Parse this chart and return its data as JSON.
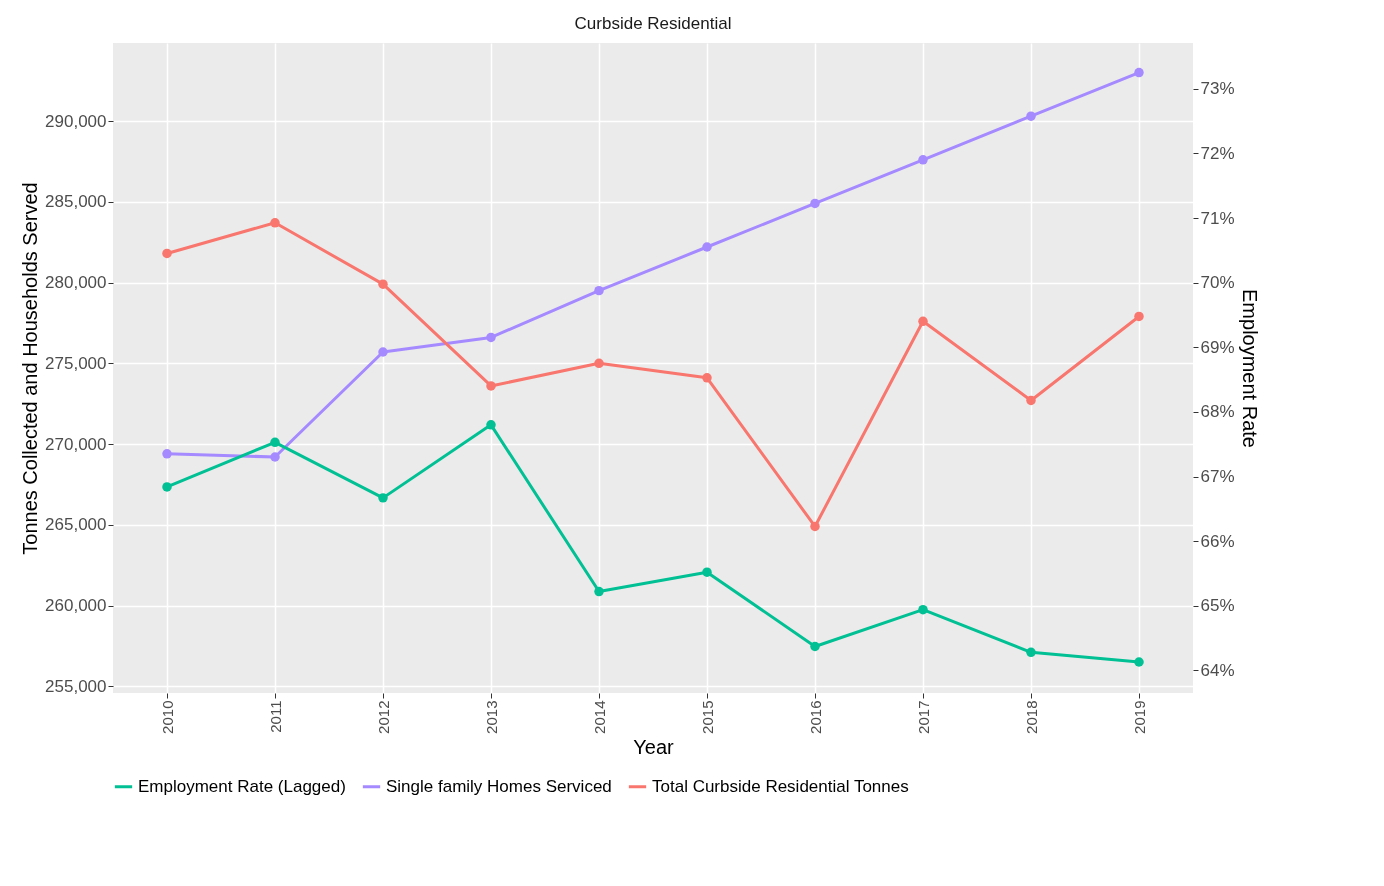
{
  "chart_data": {
    "type": "line",
    "title": "Curbside Residential",
    "xlabel": "Year",
    "ylabel": "Tonnes Collected and Households Served",
    "y2label": "Employment Rate",
    "categories": [
      "2010",
      "2011",
      "2012",
      "2013",
      "2014",
      "2015",
      "2016",
      "2017",
      "2018",
      "2019"
    ],
    "series": [
      {
        "name": "Employment Rate (Lagged)",
        "color": "#00c094",
        "axis": "y2",
        "values": [
          66.84,
          67.53,
          66.67,
          67.8,
          65.22,
          65.52,
          64.37,
          64.94,
          64.28,
          64.13
        ]
      },
      {
        "name": "Single family Homes Serviced",
        "color": "#a58aff",
        "values": [
          269400,
          269200,
          275700,
          276600,
          279500,
          282200,
          284900,
          287600,
          290300,
          293000
        ]
      },
      {
        "name": "Total Curbside Residential Tonnes",
        "color": "#f8766d",
        "values": [
          281800,
          283700,
          279900,
          273600,
          275000,
          274100,
          264900,
          277600,
          272700,
          277900
        ]
      }
    ],
    "ylim": [
      254590,
      294830
    ],
    "yticks": [
      {
        "value": 255000,
        "label": "255,000"
      },
      {
        "value": 260000,
        "label": "260,000"
      },
      {
        "value": 265000,
        "label": "265,000"
      },
      {
        "value": 270000,
        "label": "270,000"
      },
      {
        "value": 275000,
        "label": "275,000"
      },
      {
        "value": 280000,
        "label": "280,000"
      },
      {
        "value": 285000,
        "label": "285,000"
      },
      {
        "value": 290000,
        "label": "290,000"
      }
    ],
    "y2lim": [
      63.65,
      73.71
    ],
    "y2ticks": [
      {
        "value": 64,
        "label": "64%"
      },
      {
        "value": 65,
        "label": "65%"
      },
      {
        "value": 66,
        "label": "66%"
      },
      {
        "value": 67,
        "label": "67%"
      },
      {
        "value": 68,
        "label": "68%"
      },
      {
        "value": 69,
        "label": "69%"
      },
      {
        "value": 70,
        "label": "70%"
      },
      {
        "value": 71,
        "label": "71%"
      },
      {
        "value": 72,
        "label": "72%"
      },
      {
        "value": 73,
        "label": "73%"
      }
    ],
    "grid": true,
    "legend": "bottom",
    "marker": "circle",
    "line_style": "solid"
  }
}
